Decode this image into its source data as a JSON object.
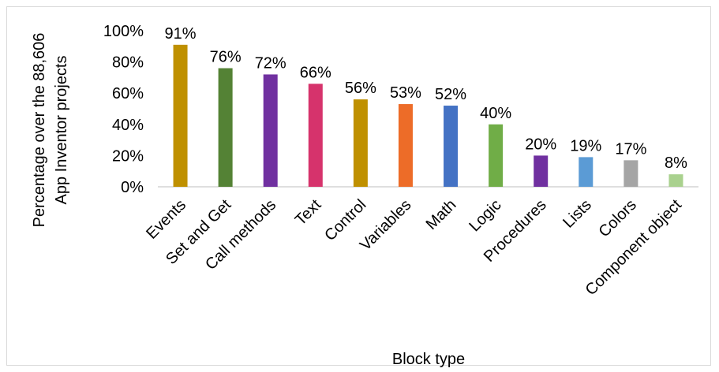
{
  "chart_data": {
    "type": "bar",
    "title": "",
    "xlabel": "Block type",
    "ylabel_lines": [
      "Percentage over the 88,606",
      "App Inventor projects"
    ],
    "ylim": [
      0,
      100
    ],
    "yticks": [
      "0%",
      "20%",
      "40%",
      "60%",
      "80%",
      "100%"
    ],
    "ytick_values": [
      0,
      20,
      40,
      60,
      80,
      100
    ],
    "grid": false,
    "legend": "none",
    "categories": [
      "Events",
      "Set and Get",
      "Call methods",
      "Text",
      "Control",
      "Variables",
      "Math",
      "Logic",
      "Procedures",
      "Lists",
      "Colors",
      "Component object"
    ],
    "values": [
      91,
      76,
      72,
      66,
      56,
      53,
      52,
      40,
      20,
      19,
      17,
      8
    ],
    "data_labels": [
      "91%",
      "76%",
      "72%",
      "66%",
      "56%",
      "53%",
      "52%",
      "40%",
      "20%",
      "19%",
      "17%",
      "8%"
    ],
    "colors": [
      "#bf9000",
      "#548235",
      "#7030a0",
      "#d6336c",
      "#bf9000",
      "#ed6c28",
      "#4472c4",
      "#70ad47",
      "#7030a0",
      "#5b9bd5",
      "#a5a5a5",
      "#a9d18e"
    ]
  }
}
